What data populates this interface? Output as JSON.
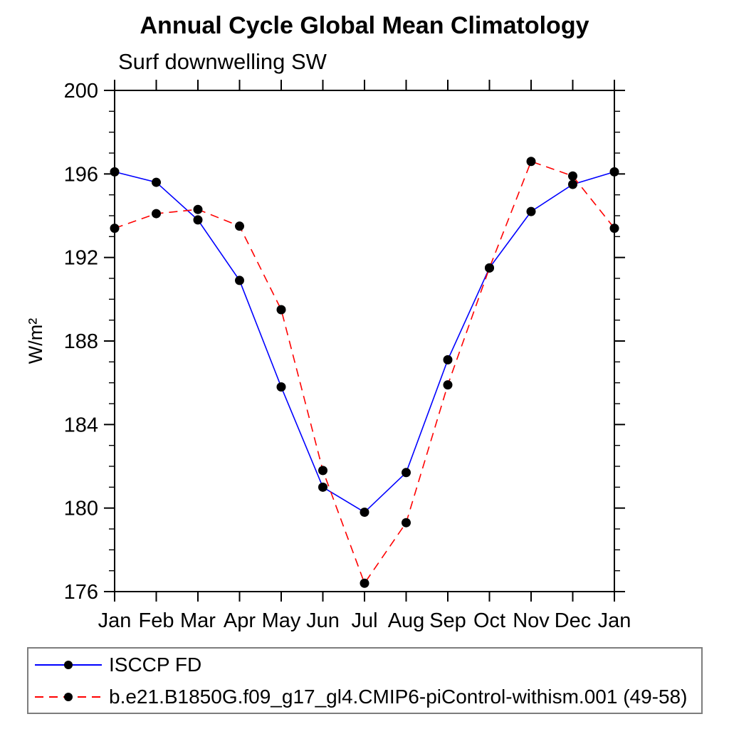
{
  "chart_data": {
    "type": "line",
    "title": "Annual Cycle Global Mean Climatology",
    "subtitle": "Surf downwelling SW",
    "ylabel": "W/m²",
    "categories": [
      "Jan",
      "Feb",
      "Mar",
      "Apr",
      "May",
      "Jun",
      "Jul",
      "Aug",
      "Sep",
      "Oct",
      "Nov",
      "Dec",
      "Jan"
    ],
    "ylim": [
      176,
      200
    ],
    "y_major_ticks": [
      176,
      180,
      184,
      188,
      192,
      196,
      200
    ],
    "y_minor_step": 1,
    "grid": false,
    "legend_position": "bottom-left-box",
    "legend_border_color": "#7d7d7d",
    "marker": "filled-circle",
    "marker_color": "#000000",
    "series": [
      {
        "name": "ISCCP FD",
        "color": "#0000ff",
        "style": "solid",
        "values": [
          196.1,
          195.6,
          193.8,
          190.9,
          185.8,
          181.0,
          179.8,
          181.7,
          187.1,
          191.5,
          194.2,
          195.5,
          196.1
        ]
      },
      {
        "name": "b.e21.B1850G.f09_g17_gl4.CMIP6-piControl-withism.001 (49-58)",
        "color": "#ff0000",
        "style": "dashed",
        "values": [
          193.4,
          194.1,
          194.3,
          193.5,
          189.5,
          181.8,
          176.4,
          179.3,
          185.9,
          191.5,
          196.6,
          195.9,
          193.4
        ]
      }
    ]
  }
}
